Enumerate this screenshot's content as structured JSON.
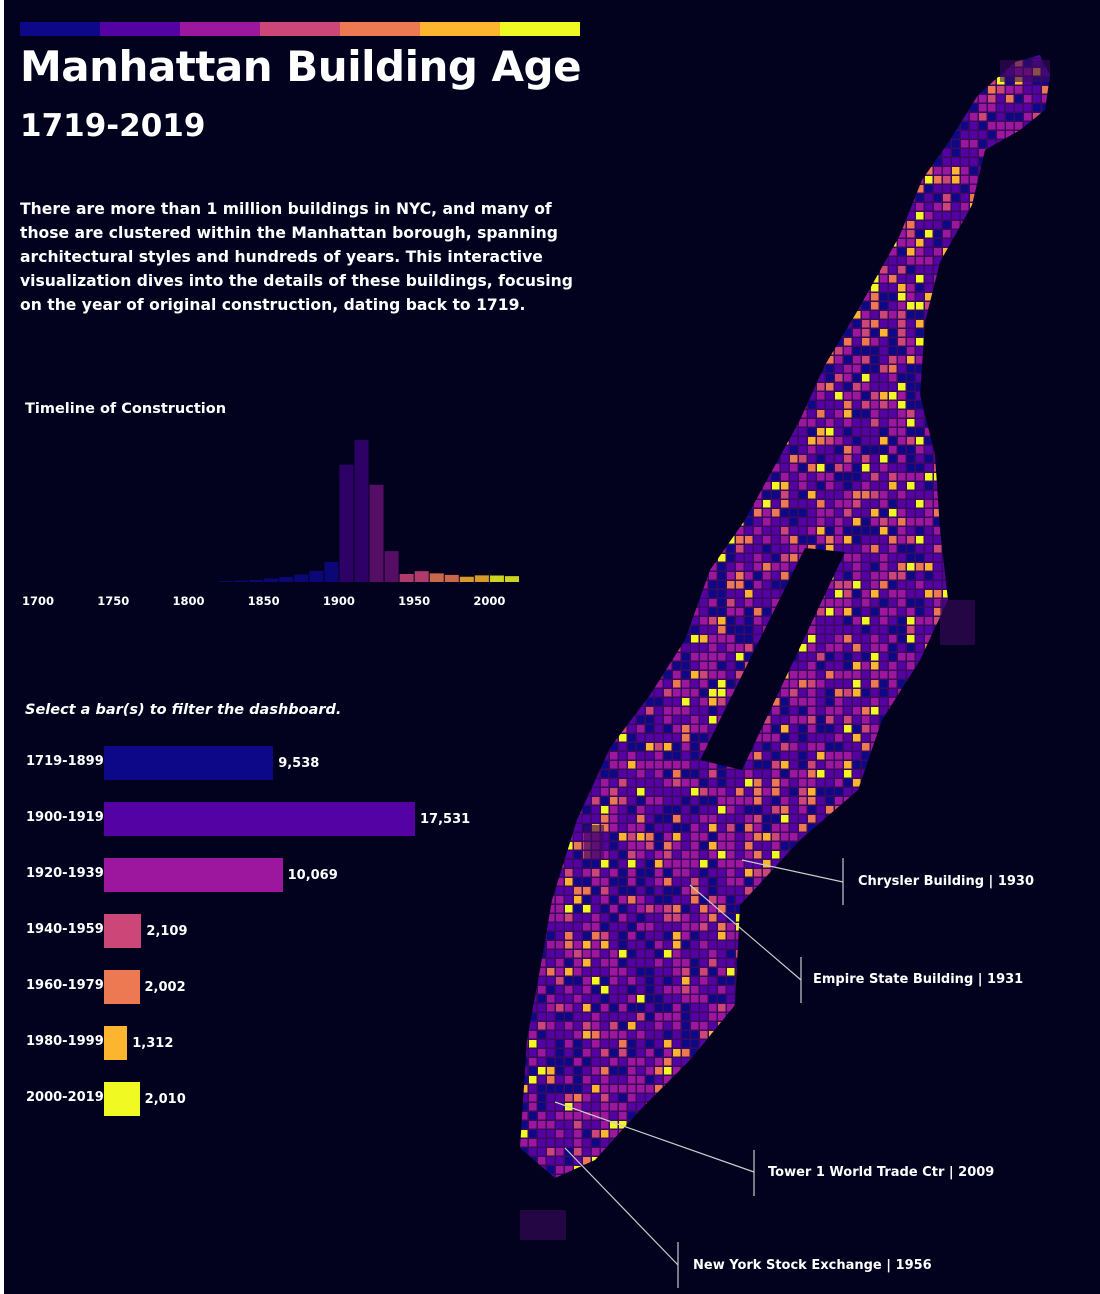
{
  "header": {
    "title": "Manhattan Building Age",
    "subtitle": "1719-2019",
    "description": "There are more than 1 million buildings in NYC, and many of those are clustered within the Manhattan borough, spanning architectural styles and hundreds of years. This interactive visualization dives into the details of these buildings, focusing on the year of original construction, dating back to 1719."
  },
  "palette": [
    "#0d0887",
    "#5402a3",
    "#9c179e",
    "#cc4778",
    "#ed7953",
    "#fdb42f",
    "#f0f921"
  ],
  "timeline": {
    "title": "Timeline of Construction"
  },
  "filter_hint": "Select a bar(s) to filter the dashboard.",
  "callouts": [
    {
      "label": "Chrysler Building | 1930"
    },
    {
      "label": "Empire State Building |  1931"
    },
    {
      "label": "Tower 1 World Trade Ctr | 2009"
    },
    {
      "label": "New York Stock Exchange | 1956"
    }
  ],
  "chart_data": [
    {
      "type": "bar",
      "title": "Timeline of Construction",
      "x_ticks": [
        "1700",
        "1750",
        "1800",
        "1850",
        "1900",
        "1950",
        "2000"
      ],
      "xlim": [
        1700,
        2025
      ],
      "x": [
        1820,
        1830,
        1840,
        1850,
        1860,
        1870,
        1880,
        1890,
        1900,
        1910,
        1920,
        1930,
        1940,
        1950,
        1960,
        1970,
        1980,
        1990,
        2000,
        2010
      ],
      "values": [
        60,
        90,
        130,
        220,
        320,
        480,
        720,
        1300,
        7600,
        9200,
        6300,
        2000,
        520,
        700,
        560,
        460,
        340,
        430,
        420,
        380
      ],
      "colors": [
        "#0d0887",
        "#0d0887",
        "#0d0887",
        "#0d0887",
        "#0d0887",
        "#0d0887",
        "#0d0887",
        "#0d0887",
        "#5402a3",
        "#5402a3",
        "#9c179e",
        "#9c179e",
        "#cc4778",
        "#cc4778",
        "#ed7953",
        "#ed7953",
        "#fdb42f",
        "#fdb42f",
        "#f0f921",
        "#f0f921"
      ]
    },
    {
      "type": "bar",
      "orientation": "horizontal",
      "categories": [
        "1719-1899",
        "1900-1919",
        "1920-1939",
        "1940-1959",
        "1960-1979",
        "1980-1999",
        "2000-2019"
      ],
      "values": [
        9538,
        17531,
        10069,
        2109,
        2002,
        1312,
        2010
      ],
      "value_labels": [
        "9,538",
        "17,531",
        "10,069",
        "2,109",
        "2,002",
        "1,312",
        "2,010"
      ],
      "colors": [
        "#0d0887",
        "#5402a3",
        "#9c179e",
        "#cc4778",
        "#ed7953",
        "#fdb42f",
        "#f0f921"
      ]
    }
  ]
}
